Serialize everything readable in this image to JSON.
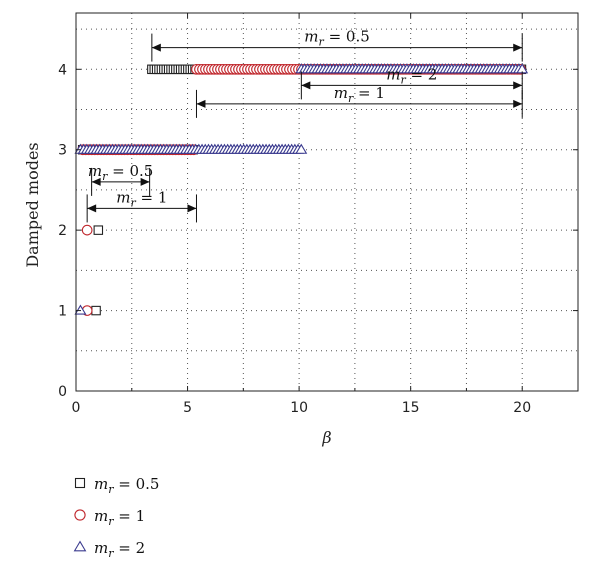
{
  "chart_data": {
    "type": "scatter",
    "title": "",
    "xlabel": "β",
    "ylabel": "Damped modes",
    "xlim": [
      0,
      22.5
    ],
    "ylim": [
      0,
      4.7
    ],
    "x_ticks": [
      0,
      5,
      10,
      15,
      20
    ],
    "y_ticks": [
      0,
      1,
      2,
      3,
      4
    ],
    "x_tick_labels": [
      "0",
      "5",
      "10",
      "15",
      "20"
    ],
    "y_tick_labels": [
      "0",
      "1",
      "2",
      "3",
      "4"
    ],
    "grid": true,
    "legend_position": "bottom-left",
    "series": [
      {
        "name_main": "m",
        "name_sub": "r",
        "name_suffix": " = 0.5",
        "marker": "square",
        "color": "#222222",
        "points": [
          {
            "x": 0.9,
            "y": 1
          },
          {
            "x": 1.0,
            "y": 2
          },
          {
            "x_from": 0.3,
            "x_to": 5.3,
            "y": 3
          },
          {
            "x_from": 3.4,
            "x_to": 20.0,
            "y": 4
          }
        ]
      },
      {
        "name_main": "m",
        "name_sub": "r",
        "name_suffix": " = 1",
        "marker": "circle",
        "color": "#c0272d",
        "points": [
          {
            "x": 0.5,
            "y": 1
          },
          {
            "x": 0.5,
            "y": 2
          },
          {
            "x_from": 0.3,
            "x_to": 5.4,
            "y": 3
          },
          {
            "x_from": 5.4,
            "x_to": 20.0,
            "y": 4
          }
        ]
      },
      {
        "name_main": "m",
        "name_sub": "r",
        "name_suffix": " = 2",
        "marker": "triangle",
        "color": "#3b3b8f",
        "points": [
          {
            "x": 0.2,
            "y": 1
          },
          {
            "x_from": 0.2,
            "x_to": 10.2,
            "y": 3
          },
          {
            "x_from": 10.1,
            "x_to": 20.1,
            "y": 4
          }
        ]
      }
    ],
    "annotations": [
      {
        "main": "m",
        "sub": "r",
        "suffix": " = 0.5",
        "x_from": 3.4,
        "x_to": 20.0,
        "y": 4.27
      },
      {
        "main": "m",
        "sub": "r",
        "suffix": " = 2",
        "x_from": 10.1,
        "x_to": 20.0,
        "y": 3.8
      },
      {
        "main": "m",
        "sub": "r",
        "suffix": " = 1",
        "x_from": 5.4,
        "x_to": 20.0,
        "y": 3.57
      },
      {
        "main": "m",
        "sub": "r",
        "suffix": " = 0.5",
        "x_from": 0.7,
        "x_to": 3.3,
        "y": 2.6
      },
      {
        "main": "m",
        "sub": "r",
        "suffix": " = 1",
        "x_from": 0.5,
        "x_to": 5.4,
        "y": 2.27
      }
    ]
  }
}
